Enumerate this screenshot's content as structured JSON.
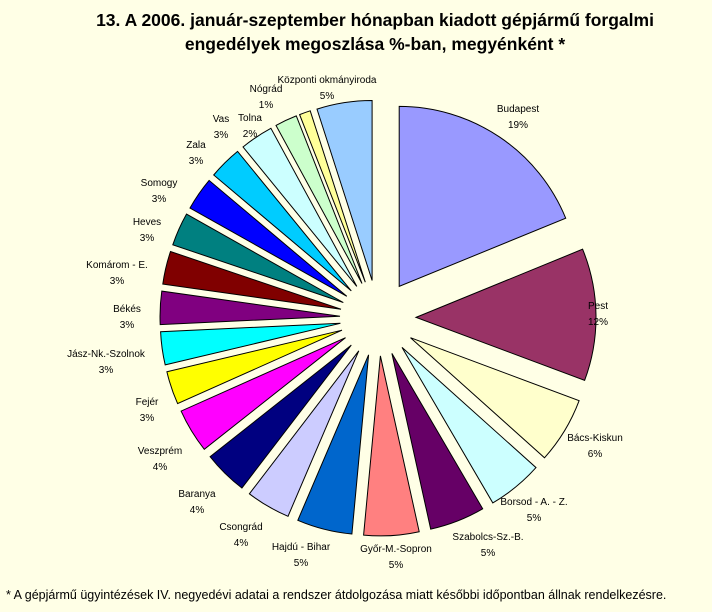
{
  "chart_data": {
    "type": "pie",
    "variant": "exploded",
    "title_lines": [
      "13. A  2006. január-szeptember hónapban kiadott gépjármű forgalmi",
      "engedélyek megoszlása %-ban, megyénként *"
    ],
    "slices": [
      {
        "label": "Budapest",
        "value_label": "19%",
        "value": 19,
        "color": "#9999ff"
      },
      {
        "label": "Pest",
        "value_label": "12%",
        "value": 12,
        "color": "#993366"
      },
      {
        "label": "Bács-Kiskun",
        "value_label": "6%",
        "value": 6,
        "color": "#ffffcc"
      },
      {
        "label": "Borsod - A. - Z.",
        "value_label": "5%",
        "value": 5,
        "color": "#ccffff"
      },
      {
        "label": "Szabolcs-Sz.-B.",
        "value_label": "5%",
        "value": 5,
        "color": "#660066"
      },
      {
        "label": "Győr-M.-Sopron",
        "value_label": "5%",
        "value": 5,
        "color": "#ff8080"
      },
      {
        "label": "Hajdú - Bihar",
        "value_label": "5%",
        "value": 5,
        "color": "#0066cc"
      },
      {
        "label": "Csongrád",
        "value_label": "4%",
        "value": 4,
        "color": "#ccccff"
      },
      {
        "label": "Baranya",
        "value_label": "4%",
        "value": 4,
        "color": "#000080"
      },
      {
        "label": "Veszprém",
        "value_label": "4%",
        "value": 4,
        "color": "#ff00ff"
      },
      {
        "label": "Fejér",
        "value_label": "3%",
        "value": 3,
        "color": "#ffff00"
      },
      {
        "label": "Jász-Nk.-Szolnok",
        "value_label": "3%",
        "value": 3,
        "color": "#00ffff"
      },
      {
        "label": "Békés",
        "value_label": "3%",
        "value": 3,
        "color": "#800080"
      },
      {
        "label": "Komárom - E.",
        "value_label": "3%",
        "value": 3,
        "color": "#800000"
      },
      {
        "label": "Heves",
        "value_label": "3%",
        "value": 3,
        "color": "#008080"
      },
      {
        "label": "Somogy",
        "value_label": "3%",
        "value": 3,
        "color": "#0000ff"
      },
      {
        "label": "Zala",
        "value_label": "3%",
        "value": 3,
        "color": "#00ccff"
      },
      {
        "label": "Vas",
        "value_label": "3%",
        "value": 3,
        "color": "#ccffff"
      },
      {
        "label": "Tolna",
        "value_label": "2%",
        "value": 2,
        "color": "#ccffcc"
      },
      {
        "label": "Nógrád",
        "value_label": "1%",
        "value": 1,
        "color": "#ffff99"
      },
      {
        "label": "Központi okmányiroda",
        "value_label": "5%",
        "value": 5,
        "color": "#99ccff"
      }
    ],
    "footnote": "* A gépjármű ügyintézések IV. negyedévi  adatai a rendszer átdolgozása miatt későbbi időpontban állnak rendelkezésre."
  }
}
